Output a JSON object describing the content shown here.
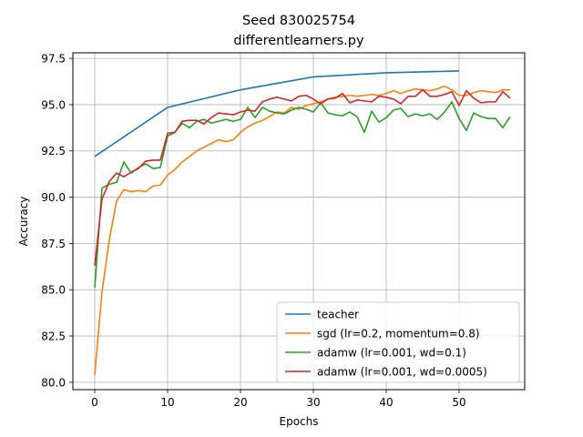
{
  "chart_data": {
    "type": "line",
    "title_line1": "Seed 830025754",
    "title_line2": "differentlearners.py",
    "xlabel": "Epochs",
    "ylabel": "Accuracy",
    "xlim": [
      -3,
      59
    ],
    "ylim": [
      79.6,
      97.8
    ],
    "xticks": [
      0,
      10,
      20,
      30,
      40,
      50
    ],
    "yticks": [
      80.0,
      82.5,
      85.0,
      87.5,
      90.0,
      92.5,
      95.0,
      97.5
    ],
    "grid": true,
    "legend_position": "lower-right",
    "series": [
      {
        "name": "teacher",
        "color": "#1f77b4",
        "x": [
          0,
          10,
          20,
          30,
          40,
          50
        ],
        "y": [
          92.2,
          94.85,
          95.8,
          96.5,
          96.72,
          96.82
        ]
      },
      {
        "name": "sgd (lr=0.2, momentum=0.8)",
        "color": "#ff7f0e",
        "x": [
          0,
          1,
          2,
          3,
          4,
          5,
          6,
          7,
          8,
          9,
          10,
          11,
          12,
          13,
          14,
          15,
          16,
          17,
          18,
          19,
          20,
          21,
          22,
          23,
          24,
          25,
          26,
          27,
          28,
          29,
          30,
          31,
          32,
          33,
          34,
          35,
          36,
          37,
          38,
          39,
          40,
          41,
          42,
          43,
          44,
          45,
          46,
          47,
          48,
          49,
          50,
          51,
          52,
          53,
          54,
          55,
          56,
          57
        ],
        "y": [
          80.4,
          84.9,
          87.7,
          89.8,
          90.4,
          90.3,
          90.35,
          90.3,
          90.6,
          90.65,
          91.2,
          91.5,
          91.9,
          92.2,
          92.5,
          92.7,
          92.9,
          93.1,
          93.0,
          93.1,
          93.5,
          93.8,
          94.0,
          94.15,
          94.35,
          94.6,
          94.55,
          94.85,
          94.75,
          94.95,
          95.05,
          95.15,
          95.3,
          95.4,
          95.45,
          95.5,
          95.45,
          95.5,
          95.55,
          95.5,
          95.6,
          95.75,
          95.6,
          95.75,
          95.85,
          95.8,
          95.75,
          95.85,
          96.0,
          95.8,
          95.5,
          95.5,
          95.65,
          95.75,
          95.7,
          95.65,
          95.8,
          95.8
        ]
      },
      {
        "name": "adamw (lr=0.001, wd=0.1)",
        "color": "#2ca02c",
        "x": [
          0,
          1,
          2,
          3,
          4,
          5,
          6,
          7,
          8,
          9,
          10,
          11,
          12,
          13,
          14,
          15,
          16,
          17,
          18,
          19,
          20,
          21,
          22,
          23,
          24,
          25,
          26,
          27,
          28,
          29,
          30,
          31,
          32,
          33,
          34,
          35,
          36,
          37,
          38,
          39,
          40,
          41,
          42,
          43,
          44,
          45,
          46,
          47,
          48,
          49,
          50,
          51,
          52,
          53,
          54,
          55,
          56,
          57
        ],
        "y": [
          85.1,
          90.5,
          90.7,
          90.8,
          91.9,
          91.3,
          91.6,
          91.8,
          91.55,
          91.6,
          93.3,
          93.5,
          94.0,
          93.75,
          94.1,
          94.2,
          94.0,
          94.1,
          94.2,
          94.1,
          94.2,
          94.85,
          94.3,
          94.85,
          94.65,
          94.55,
          94.5,
          94.7,
          94.85,
          94.75,
          94.6,
          95.1,
          94.55,
          94.45,
          94.4,
          94.6,
          94.35,
          93.5,
          94.65,
          94.05,
          94.3,
          94.7,
          94.8,
          94.35,
          94.5,
          94.4,
          94.5,
          94.2,
          94.6,
          95.15,
          94.25,
          93.6,
          94.55,
          94.35,
          94.25,
          94.25,
          93.75,
          94.35
        ]
      },
      {
        "name": "adamw (lr=0.001, wd=0.0005)",
        "color": "#d62728",
        "x": [
          0,
          1,
          2,
          3,
          4,
          5,
          6,
          7,
          8,
          9,
          10,
          11,
          12,
          13,
          14,
          15,
          16,
          17,
          18,
          19,
          20,
          21,
          22,
          23,
          24,
          25,
          26,
          27,
          28,
          29,
          30,
          31,
          32,
          33,
          34,
          35,
          36,
          37,
          38,
          39,
          40,
          41,
          42,
          43,
          44,
          45,
          46,
          47,
          48,
          49,
          50,
          51,
          52,
          53,
          54,
          55,
          56,
          57
        ],
        "y": [
          86.3,
          89.9,
          90.85,
          91.3,
          91.1,
          91.35,
          91.55,
          91.95,
          92.0,
          92.0,
          93.45,
          93.5,
          94.1,
          94.15,
          94.15,
          93.95,
          94.3,
          94.55,
          94.5,
          94.45,
          94.6,
          94.7,
          94.65,
          95.15,
          95.3,
          95.4,
          95.3,
          95.2,
          95.45,
          95.5,
          95.3,
          95.05,
          95.3,
          95.35,
          95.6,
          95.1,
          95.25,
          95.2,
          95.15,
          95.45,
          95.4,
          95.3,
          95.05,
          95.45,
          95.45,
          95.8,
          95.45,
          95.45,
          95.55,
          95.7,
          94.95,
          95.75,
          95.35,
          95.1,
          95.15,
          95.15,
          95.7,
          95.35
        ]
      }
    ]
  }
}
